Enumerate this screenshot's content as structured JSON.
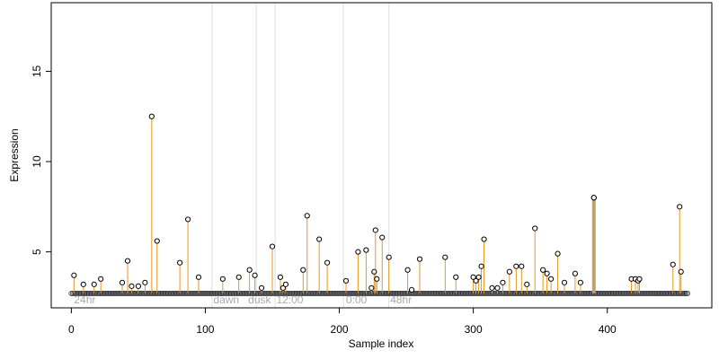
{
  "chart_data": {
    "type": "scatter",
    "xlabel": "Sample index",
    "ylabel": "Expression",
    "xlim": [
      -15,
      478
    ],
    "ylim": [
      1.9,
      18.8
    ],
    "x_ticks": [
      0,
      100,
      200,
      300,
      400
    ],
    "y_ticks": [
      5,
      10,
      15
    ],
    "baseline": 2.7,
    "colors": {
      "baseline": "#6b8ec2",
      "stem": "#e8961e",
      "highlight_stem": "#a6a6a6",
      "point_edge": "#000000",
      "divider": "#dddddd"
    },
    "dividers": [
      105,
      138,
      152,
      203,
      237
    ],
    "annotations": [
      {
        "text": "24hr",
        "x": 2
      },
      {
        "text": "dawn",
        "x": 106
      },
      {
        "text": "dusk",
        "x": 132
      },
      {
        "text": "12:00",
        "x": 153
      },
      {
        "text": "0:00",
        "x": 205
      },
      {
        "text": "48hr",
        "x": 238
      }
    ],
    "highlight": {
      "x": 390,
      "value": 8.0
    },
    "points": [
      [
        2,
        3.7
      ],
      [
        9,
        3.2
      ],
      [
        17,
        3.2
      ],
      [
        22,
        3.5
      ],
      [
        38,
        3.3
      ],
      [
        42,
        4.5
      ],
      [
        45,
        3.1
      ],
      [
        50,
        3.1
      ],
      [
        55,
        3.3
      ],
      [
        60,
        12.5
      ],
      [
        64,
        5.6
      ],
      [
        81,
        4.4
      ],
      [
        87,
        6.8
      ],
      [
        95,
        3.6
      ],
      [
        113,
        3.5
      ],
      [
        125,
        3.6
      ],
      [
        133,
        4.0
      ],
      [
        137,
        3.7
      ],
      [
        142,
        3.0
      ],
      [
        150,
        5.3
      ],
      [
        156,
        3.6
      ],
      [
        158,
        3.0
      ],
      [
        160,
        3.2
      ],
      [
        173,
        4.0
      ],
      [
        176,
        7.0
      ],
      [
        185,
        5.7
      ],
      [
        191,
        4.4
      ],
      [
        205,
        3.4
      ],
      [
        214,
        5.0
      ],
      [
        220,
        5.1
      ],
      [
        224,
        3.0
      ],
      [
        226,
        3.9
      ],
      [
        227,
        6.2
      ],
      [
        228,
        3.5
      ],
      [
        232,
        5.8
      ],
      [
        237,
        4.7
      ],
      [
        251,
        4.0
      ],
      [
        254,
        2.9
      ],
      [
        260,
        4.6
      ],
      [
        279,
        4.7
      ],
      [
        287,
        3.6
      ],
      [
        300,
        3.6
      ],
      [
        302,
        3.4
      ],
      [
        304,
        3.6
      ],
      [
        306,
        4.2
      ],
      [
        308,
        5.7
      ],
      [
        314,
        3.0
      ],
      [
        318,
        3.0
      ],
      [
        322,
        3.3
      ],
      [
        327,
        3.9
      ],
      [
        332,
        4.2
      ],
      [
        336,
        4.2
      ],
      [
        340,
        3.2
      ],
      [
        346,
        6.3
      ],
      [
        352,
        4.0
      ],
      [
        355,
        3.8
      ],
      [
        358,
        3.5
      ],
      [
        363,
        4.9
      ],
      [
        368,
        3.3
      ],
      [
        376,
        3.8
      ],
      [
        380,
        3.3
      ],
      [
        390,
        8.0
      ],
      [
        418,
        3.5
      ],
      [
        421,
        3.5
      ],
      [
        423,
        3.4
      ],
      [
        424,
        3.5
      ],
      [
        449,
        4.3
      ],
      [
        454,
        7.5
      ],
      [
        455,
        3.9
      ]
    ]
  }
}
